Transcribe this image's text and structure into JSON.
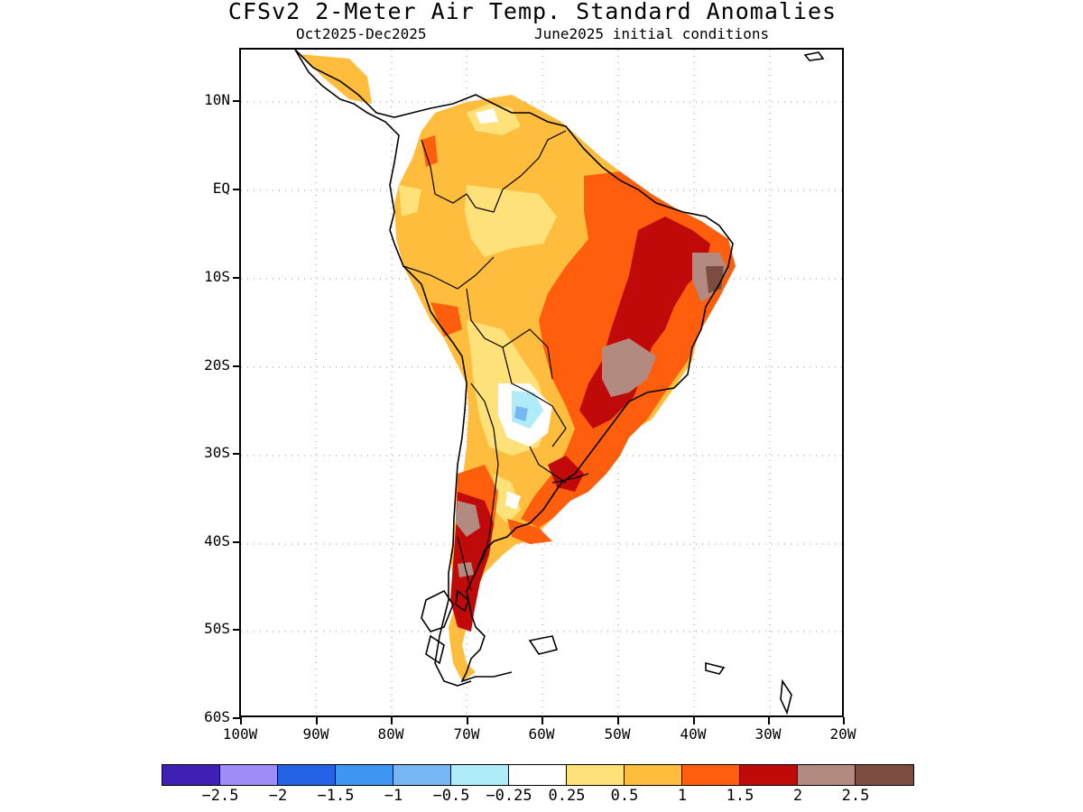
{
  "title": "CFSv2 2-Meter Air Temp. Standard Anomalies",
  "subtitle_left": "Oct2025-Dec2025",
  "subtitle_right": "June2025 initial conditions",
  "y_axis_labels": [
    "10N",
    "EQ",
    "10S",
    "20S",
    "30S",
    "40S",
    "50S",
    "60S"
  ],
  "x_axis_labels": [
    "100W",
    "90W",
    "80W",
    "70W",
    "60W",
    "50W",
    "40W",
    "30W",
    "20W"
  ],
  "colorbar": {
    "colors": [
      "#3f1fb4",
      "#9f8cf6",
      "#2563e6",
      "#3f95f2",
      "#76b6f5",
      "#b0ecf8",
      "#ffffff",
      "#ffe17a",
      "#ffbd3e",
      "#ff5f0c",
      "#c00a0a",
      "#b38a80",
      "#7d4c41"
    ],
    "labels": [
      "-2.5",
      "-2",
      "-1.5",
      "-1",
      "-0.5",
      "-0.25",
      "0.25",
      "0.5",
      "1",
      "1.5",
      "2",
      "2.5"
    ]
  }
}
